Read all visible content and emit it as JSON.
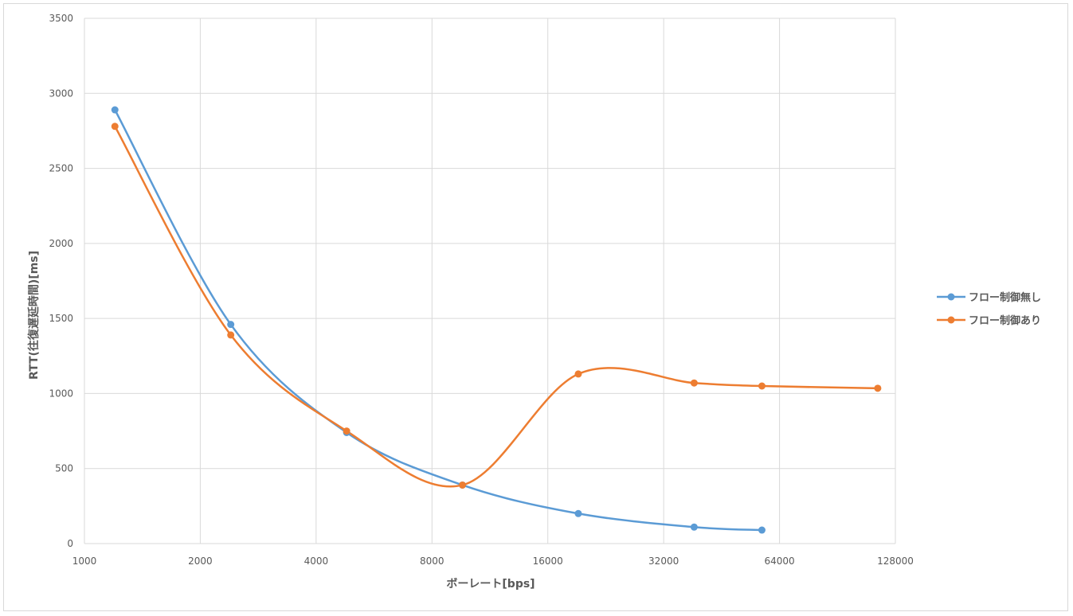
{
  "chart_data": {
    "type": "line",
    "title": "",
    "xlabel": "ボーレート[bps]",
    "ylabel": "RTT(往復遅延時間)[ms]",
    "x_scale": "log2",
    "xlim": [
      1000,
      128000
    ],
    "ylim": [
      0,
      3500
    ],
    "x_ticks": [
      "1000",
      "2000",
      "4000",
      "8000",
      "16000",
      "32000",
      "64000",
      "128000"
    ],
    "y_ticks": [
      "0",
      "500",
      "1000",
      "1500",
      "2000",
      "2500",
      "3000",
      "3500"
    ],
    "grid": true,
    "legend_position": "right",
    "smoothed": true,
    "series": [
      {
        "name": "フロー制御無し",
        "color": "#5b9bd5",
        "x": [
          1200,
          2400,
          4800,
          9600,
          19200,
          38400,
          57600
        ],
        "y": [
          2890,
          1460,
          740,
          390,
          200,
          110,
          90
        ]
      },
      {
        "name": "フロー制御あり",
        "color": "#ed7d31",
        "x": [
          1200,
          2400,
          4800,
          9600,
          19200,
          38400,
          57600,
          115200
        ],
        "y": [
          2780,
          1390,
          750,
          390,
          1130,
          1070,
          1050,
          1035
        ]
      }
    ]
  }
}
